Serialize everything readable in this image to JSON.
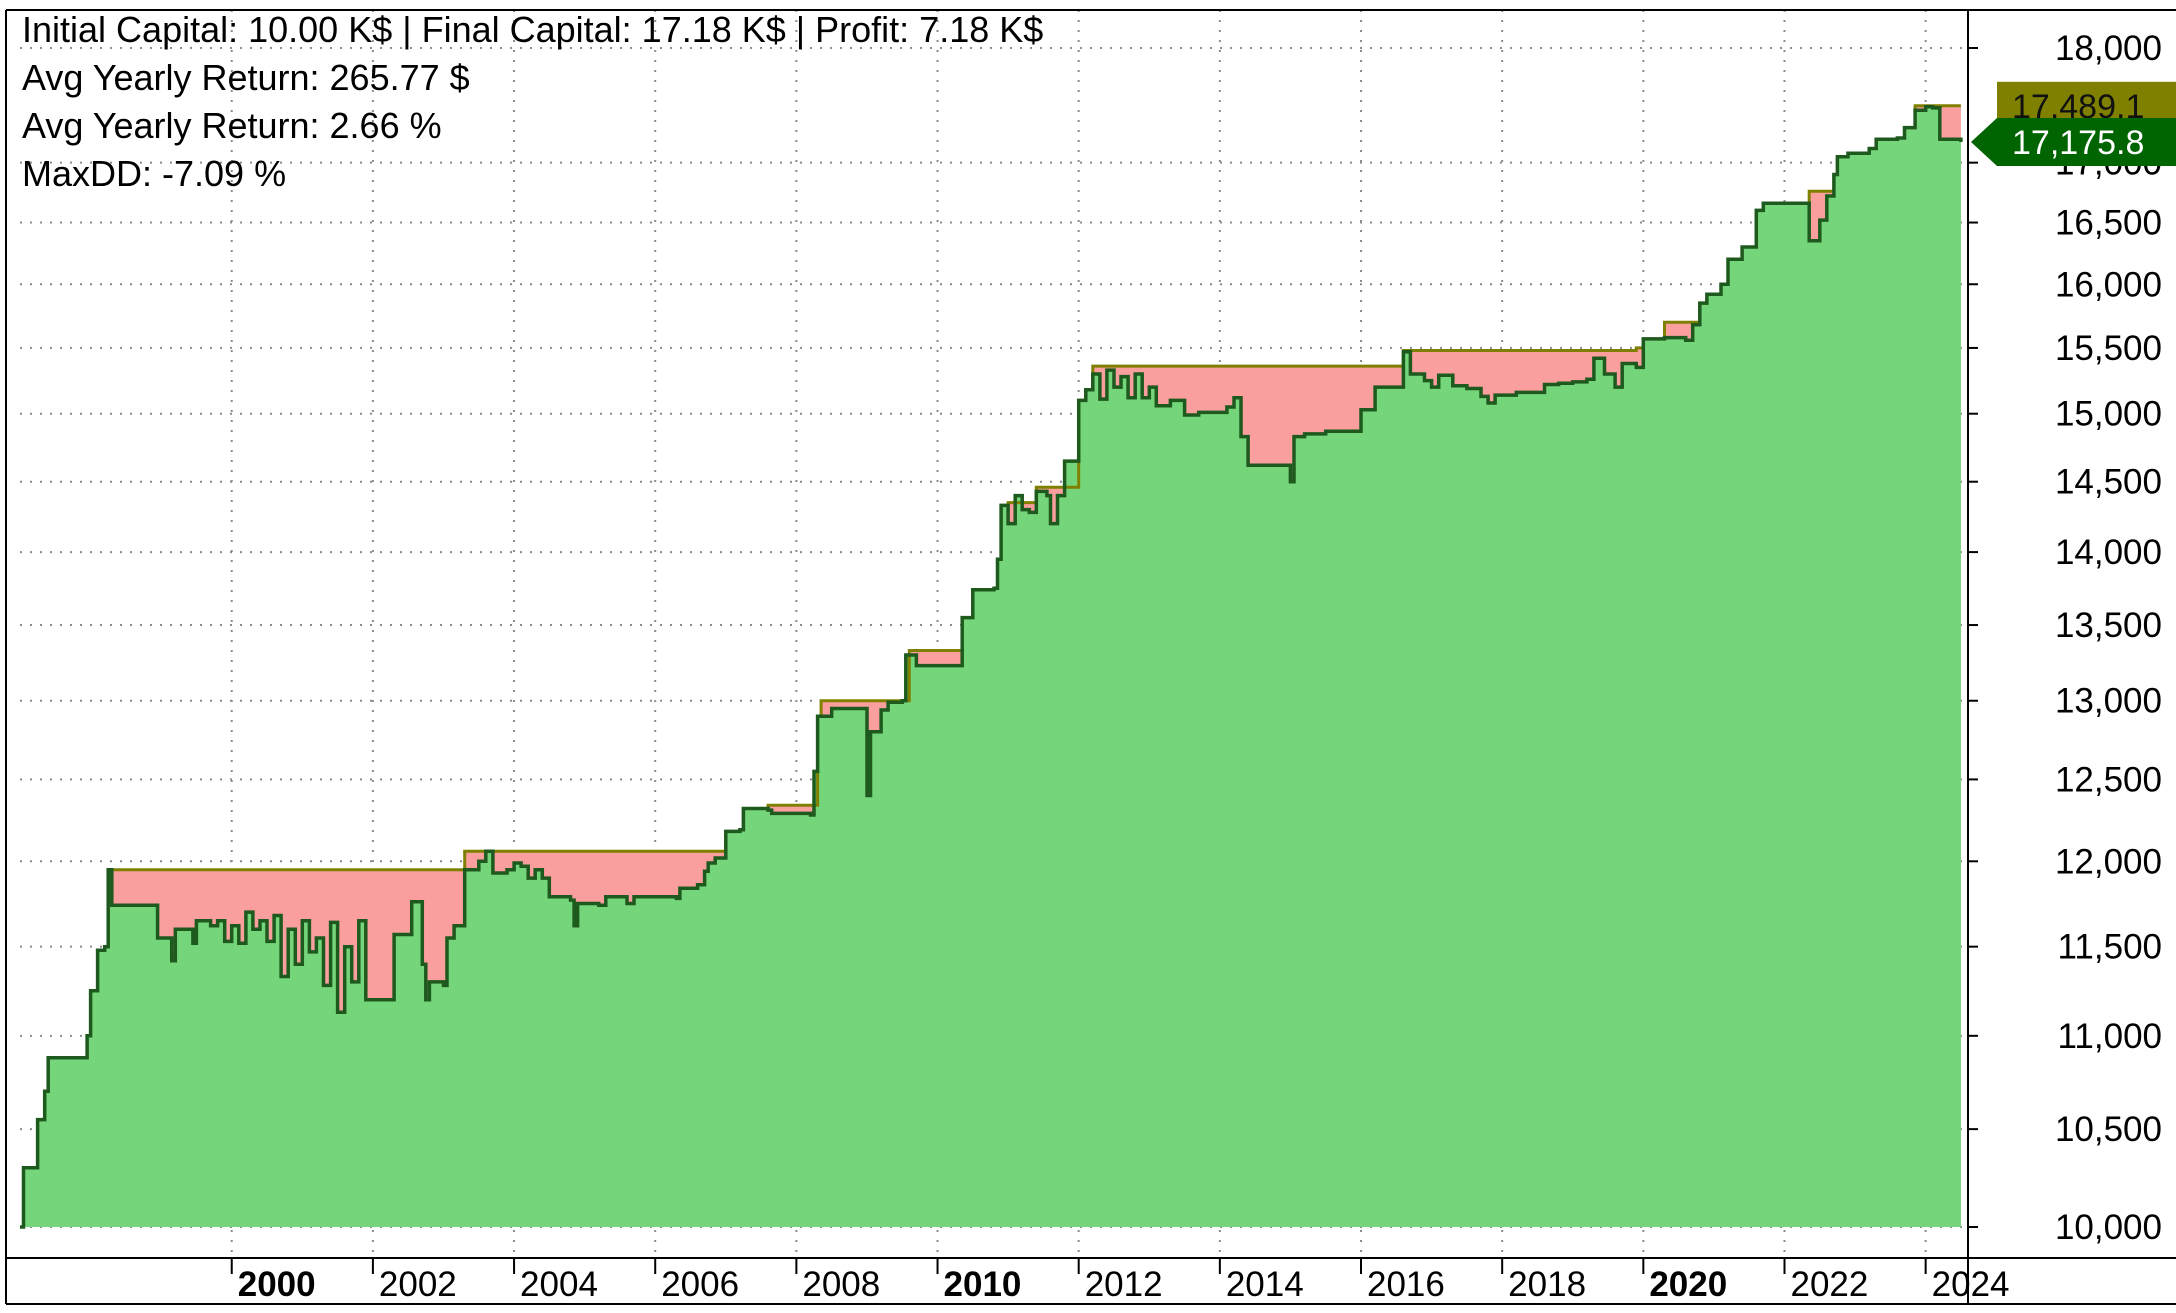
{
  "stats": {
    "line1": "Initial Capital: 10.00 K$ | Final Capital: 17.18 K$ | Profit: 7.18 K$",
    "line2": "Avg Yearly Return: 265.77 $",
    "line3": "Avg Yearly Return: 2.66 %",
    "line4": "MaxDD: -7.09 %"
  },
  "price_tags": {
    "high": {
      "label": "17,489.1",
      "value": 17489.1,
      "color": "#808000"
    },
    "last": {
      "label": "17,175.8",
      "value": 17175.8,
      "color": "#006400"
    }
  },
  "chart_data": {
    "type": "area",
    "title": "",
    "xlabel": "",
    "ylabel": "",
    "scale": "log",
    "ylim": [
      10000,
      18000
    ],
    "xlim": [
      1997.0,
      2024.6
    ],
    "grid": true,
    "y_ticks": [
      {
        "value": 10000,
        "label": "10,000"
      },
      {
        "value": 10500,
        "label": "10,500"
      },
      {
        "value": 11000,
        "label": "11,000"
      },
      {
        "value": 11500,
        "label": "11,500"
      },
      {
        "value": 12000,
        "label": "12,000"
      },
      {
        "value": 12500,
        "label": "12,500"
      },
      {
        "value": 13000,
        "label": "13,000"
      },
      {
        "value": 13500,
        "label": "13,500"
      },
      {
        "value": 14000,
        "label": "14,000"
      },
      {
        "value": 14500,
        "label": "14,500"
      },
      {
        "value": 15000,
        "label": "15,000"
      },
      {
        "value": 15500,
        "label": "15,500"
      },
      {
        "value": 16000,
        "label": "16,000"
      },
      {
        "value": 16500,
        "label": "16,500"
      },
      {
        "value": 17000,
        "label": "17,000"
      },
      {
        "value": 18000,
        "label": "18,000"
      }
    ],
    "x_ticks": [
      {
        "value": 2000,
        "label": "2000",
        "bold": true
      },
      {
        "value": 2002,
        "label": "2002",
        "bold": false
      },
      {
        "value": 2004,
        "label": "2004",
        "bold": false
      },
      {
        "value": 2006,
        "label": "2006",
        "bold": false
      },
      {
        "value": 2008,
        "label": "2008",
        "bold": false
      },
      {
        "value": 2010,
        "label": "2010",
        "bold": true
      },
      {
        "value": 2012,
        "label": "2012",
        "bold": false
      },
      {
        "value": 2014,
        "label": "2014",
        "bold": false
      },
      {
        "value": 2016,
        "label": "2016",
        "bold": false
      },
      {
        "value": 2018,
        "label": "2018",
        "bold": false
      },
      {
        "value": 2020,
        "label": "2020",
        "bold": true
      },
      {
        "value": 2022,
        "label": "2022",
        "bold": false
      },
      {
        "value": 2024,
        "label": "2024",
        "bold": false
      }
    ],
    "colors": {
      "equity_fill": "#74D57A",
      "equity_line": "#1E5A1E",
      "drawdown_fill": "#FA9E9E",
      "peak_line": "#808000",
      "grid": "#8C8C8C"
    },
    "series": [
      {
        "role": "equity",
        "points": [
          [
            1997.0,
            10000
          ],
          [
            1997.05,
            10300
          ],
          [
            1997.2,
            10300
          ],
          [
            1997.25,
            10550
          ],
          [
            1997.3,
            10550
          ],
          [
            1997.35,
            10700
          ],
          [
            1997.4,
            10880
          ],
          [
            1997.9,
            10880
          ],
          [
            1997.95,
            11000
          ],
          [
            1998.0,
            11250
          ],
          [
            1998.1,
            11480
          ],
          [
            1998.2,
            11500
          ],
          [
            1998.25,
            11950
          ],
          [
            1998.3,
            11740
          ],
          [
            1998.9,
            11740
          ],
          [
            1998.95,
            11550
          ],
          [
            1999.1,
            11550
          ],
          [
            1999.15,
            11420
          ],
          [
            1999.2,
            11600
          ],
          [
            1999.4,
            11600
          ],
          [
            1999.45,
            11520
          ],
          [
            1999.5,
            11650
          ],
          [
            1999.7,
            11620
          ],
          [
            1999.8,
            11650
          ],
          [
            1999.9,
            11530
          ],
          [
            2000.0,
            11620
          ],
          [
            2000.1,
            11520
          ],
          [
            2000.2,
            11700
          ],
          [
            2000.3,
            11600
          ],
          [
            2000.4,
            11650
          ],
          [
            2000.5,
            11530
          ],
          [
            2000.6,
            11680
          ],
          [
            2000.7,
            11330
          ],
          [
            2000.8,
            11600
          ],
          [
            2000.9,
            11400
          ],
          [
            2001.0,
            11650
          ],
          [
            2001.1,
            11470
          ],
          [
            2001.2,
            11550
          ],
          [
            2001.3,
            11280
          ],
          [
            2001.4,
            11640
          ],
          [
            2001.5,
            11130
          ],
          [
            2001.6,
            11500
          ],
          [
            2001.7,
            11300
          ],
          [
            2001.8,
            11650
          ],
          [
            2001.9,
            11200
          ],
          [
            2002.2,
            11200
          ],
          [
            2002.3,
            11570
          ],
          [
            2002.5,
            11570
          ],
          [
            2002.55,
            11760
          ],
          [
            2002.65,
            11760
          ],
          [
            2002.7,
            11400
          ],
          [
            2002.75,
            11200
          ],
          [
            2002.8,
            11300
          ],
          [
            2003.0,
            11280
          ],
          [
            2003.05,
            11550
          ],
          [
            2003.15,
            11620
          ],
          [
            2003.3,
            11950
          ],
          [
            2003.5,
            12000
          ],
          [
            2003.6,
            12060
          ],
          [
            2003.7,
            11930
          ],
          [
            2003.9,
            11950
          ],
          [
            2004.0,
            11990
          ],
          [
            2004.1,
            11970
          ],
          [
            2004.2,
            11900
          ],
          [
            2004.3,
            11950
          ],
          [
            2004.4,
            11900
          ],
          [
            2004.5,
            11790
          ],
          [
            2004.8,
            11770
          ],
          [
            2004.85,
            11620
          ],
          [
            2004.9,
            11750
          ],
          [
            2005.2,
            11740
          ],
          [
            2005.3,
            11790
          ],
          [
            2005.6,
            11750
          ],
          [
            2005.7,
            11790
          ],
          [
            2006.3,
            11780
          ],
          [
            2006.35,
            11840
          ],
          [
            2006.6,
            11860
          ],
          [
            2006.7,
            11940
          ],
          [
            2006.75,
            11990
          ],
          [
            2006.85,
            12020
          ],
          [
            2007.0,
            12180
          ],
          [
            2007.2,
            12190
          ],
          [
            2007.25,
            12320
          ],
          [
            2007.6,
            12310
          ],
          [
            2007.65,
            12290
          ],
          [
            2008.1,
            12290
          ],
          [
            2008.2,
            12280
          ],
          [
            2008.25,
            12550
          ],
          [
            2008.3,
            12900
          ],
          [
            2008.5,
            12950
          ],
          [
            2008.6,
            12950
          ],
          [
            2008.95,
            12950
          ],
          [
            2009.0,
            12400
          ],
          [
            2009.05,
            12800
          ],
          [
            2009.2,
            12940
          ],
          [
            2009.3,
            12990
          ],
          [
            2009.5,
            13000
          ],
          [
            2009.55,
            13300
          ],
          [
            2009.7,
            13230
          ],
          [
            2010.3,
            13230
          ],
          [
            2010.35,
            13550
          ],
          [
            2010.5,
            13740
          ],
          [
            2010.8,
            13750
          ],
          [
            2010.85,
            13950
          ],
          [
            2010.9,
            14330
          ],
          [
            2011.0,
            14200
          ],
          [
            2011.1,
            14400
          ],
          [
            2011.2,
            14300
          ],
          [
            2011.3,
            14280
          ],
          [
            2011.4,
            14430
          ],
          [
            2011.5,
            14430
          ],
          [
            2011.55,
            14400
          ],
          [
            2011.6,
            14200
          ],
          [
            2011.7,
            14400
          ],
          [
            2011.8,
            14650
          ],
          [
            2012.0,
            15100
          ],
          [
            2012.1,
            15180
          ],
          [
            2012.2,
            15300
          ],
          [
            2012.3,
            15110
          ],
          [
            2012.4,
            15330
          ],
          [
            2012.5,
            15200
          ],
          [
            2012.6,
            15280
          ],
          [
            2012.7,
            15120
          ],
          [
            2012.8,
            15300
          ],
          [
            2012.9,
            15120
          ],
          [
            2013.0,
            15200
          ],
          [
            2013.1,
            15060
          ],
          [
            2013.3,
            15100
          ],
          [
            2013.5,
            14990
          ],
          [
            2013.7,
            15010
          ],
          [
            2013.9,
            15010
          ],
          [
            2014.1,
            15050
          ],
          [
            2014.2,
            15120
          ],
          [
            2014.3,
            14830
          ],
          [
            2014.4,
            14620
          ],
          [
            2014.9,
            14620
          ],
          [
            2015.0,
            14500
          ],
          [
            2015.05,
            14830
          ],
          [
            2015.2,
            14850
          ],
          [
            2015.5,
            14870
          ],
          [
            2015.8,
            14870
          ],
          [
            2016.0,
            15030
          ],
          [
            2016.2,
            15200
          ],
          [
            2016.5,
            15200
          ],
          [
            2016.6,
            15470
          ],
          [
            2016.7,
            15300
          ],
          [
            2016.9,
            15250
          ],
          [
            2017.0,
            15200
          ],
          [
            2017.1,
            15290
          ],
          [
            2017.3,
            15210
          ],
          [
            2017.5,
            15190
          ],
          [
            2017.7,
            15130
          ],
          [
            2017.8,
            15080
          ],
          [
            2017.9,
            15140
          ],
          [
            2018.2,
            15160
          ],
          [
            2018.5,
            15160
          ],
          [
            2018.6,
            15220
          ],
          [
            2018.8,
            15230
          ],
          [
            2019.0,
            15240
          ],
          [
            2019.2,
            15260
          ],
          [
            2019.3,
            15420
          ],
          [
            2019.45,
            15300
          ],
          [
            2019.6,
            15200
          ],
          [
            2019.7,
            15380
          ],
          [
            2019.9,
            15350
          ],
          [
            2020.0,
            15570
          ],
          [
            2020.3,
            15580
          ],
          [
            2020.6,
            15560
          ],
          [
            2020.7,
            15680
          ],
          [
            2020.8,
            15850
          ],
          [
            2020.9,
            15920
          ],
          [
            2021.1,
            16000
          ],
          [
            2021.2,
            16200
          ],
          [
            2021.4,
            16300
          ],
          [
            2021.6,
            16600
          ],
          [
            2021.7,
            16660
          ],
          [
            2022.3,
            16660
          ],
          [
            2022.35,
            16350
          ],
          [
            2022.5,
            16520
          ],
          [
            2022.6,
            16720
          ],
          [
            2022.7,
            16900
          ],
          [
            2022.75,
            17050
          ],
          [
            2022.9,
            17080
          ],
          [
            2023.2,
            17120
          ],
          [
            2023.3,
            17200
          ],
          [
            2023.6,
            17210
          ],
          [
            2023.7,
            17300
          ],
          [
            2023.85,
            17450
          ],
          [
            2024.0,
            17480
          ],
          [
            2024.1,
            17470
          ],
          [
            2024.2,
            17200
          ],
          [
            2024.5,
            17176
          ]
        ]
      },
      {
        "role": "peak",
        "points": [
          [
            1997.0,
            10000
          ],
          [
            1997.05,
            10300
          ],
          [
            1997.2,
            10300
          ],
          [
            1997.25,
            10550
          ],
          [
            1997.3,
            10550
          ],
          [
            1997.35,
            10700
          ],
          [
            1997.4,
            10880
          ],
          [
            1997.9,
            10880
          ],
          [
            1997.95,
            11000
          ],
          [
            1998.0,
            11250
          ],
          [
            1998.1,
            11480
          ],
          [
            1998.2,
            11500
          ],
          [
            1998.25,
            11950
          ],
          [
            2003.15,
            11950
          ],
          [
            2003.3,
            12060
          ],
          [
            2006.85,
            12060
          ],
          [
            2007.0,
            12180
          ],
          [
            2007.2,
            12190
          ],
          [
            2007.25,
            12320
          ],
          [
            2007.6,
            12340
          ],
          [
            2008.25,
            12340
          ],
          [
            2008.3,
            12900
          ],
          [
            2008.35,
            13000
          ],
          [
            2009.55,
            13000
          ],
          [
            2009.6,
            13330
          ],
          [
            2010.3,
            13330
          ],
          [
            2010.35,
            13550
          ],
          [
            2010.5,
            13740
          ],
          [
            2010.8,
            13750
          ],
          [
            2010.85,
            13950
          ],
          [
            2010.9,
            14330
          ],
          [
            2011.0,
            14350
          ],
          [
            2011.4,
            14460
          ],
          [
            2011.8,
            14460
          ],
          [
            2012.0,
            15100
          ],
          [
            2012.1,
            15180
          ],
          [
            2012.2,
            15360
          ],
          [
            2016.6,
            15480
          ],
          [
            2019.9,
            15500
          ],
          [
            2020.0,
            15570
          ],
          [
            2020.3,
            15700
          ],
          [
            2020.8,
            15850
          ],
          [
            2020.9,
            15920
          ],
          [
            2021.1,
            16000
          ],
          [
            2021.2,
            16200
          ],
          [
            2021.4,
            16300
          ],
          [
            2021.6,
            16600
          ],
          [
            2021.7,
            16660
          ],
          [
            2022.3,
            16660
          ],
          [
            2022.35,
            16760
          ],
          [
            2022.7,
            16900
          ],
          [
            2022.75,
            17050
          ],
          [
            2022.9,
            17080
          ],
          [
            2023.2,
            17120
          ],
          [
            2023.3,
            17200
          ],
          [
            2023.6,
            17210
          ],
          [
            2023.7,
            17300
          ],
          [
            2023.85,
            17490
          ],
          [
            2024.5,
            17490
          ]
        ]
      }
    ]
  }
}
